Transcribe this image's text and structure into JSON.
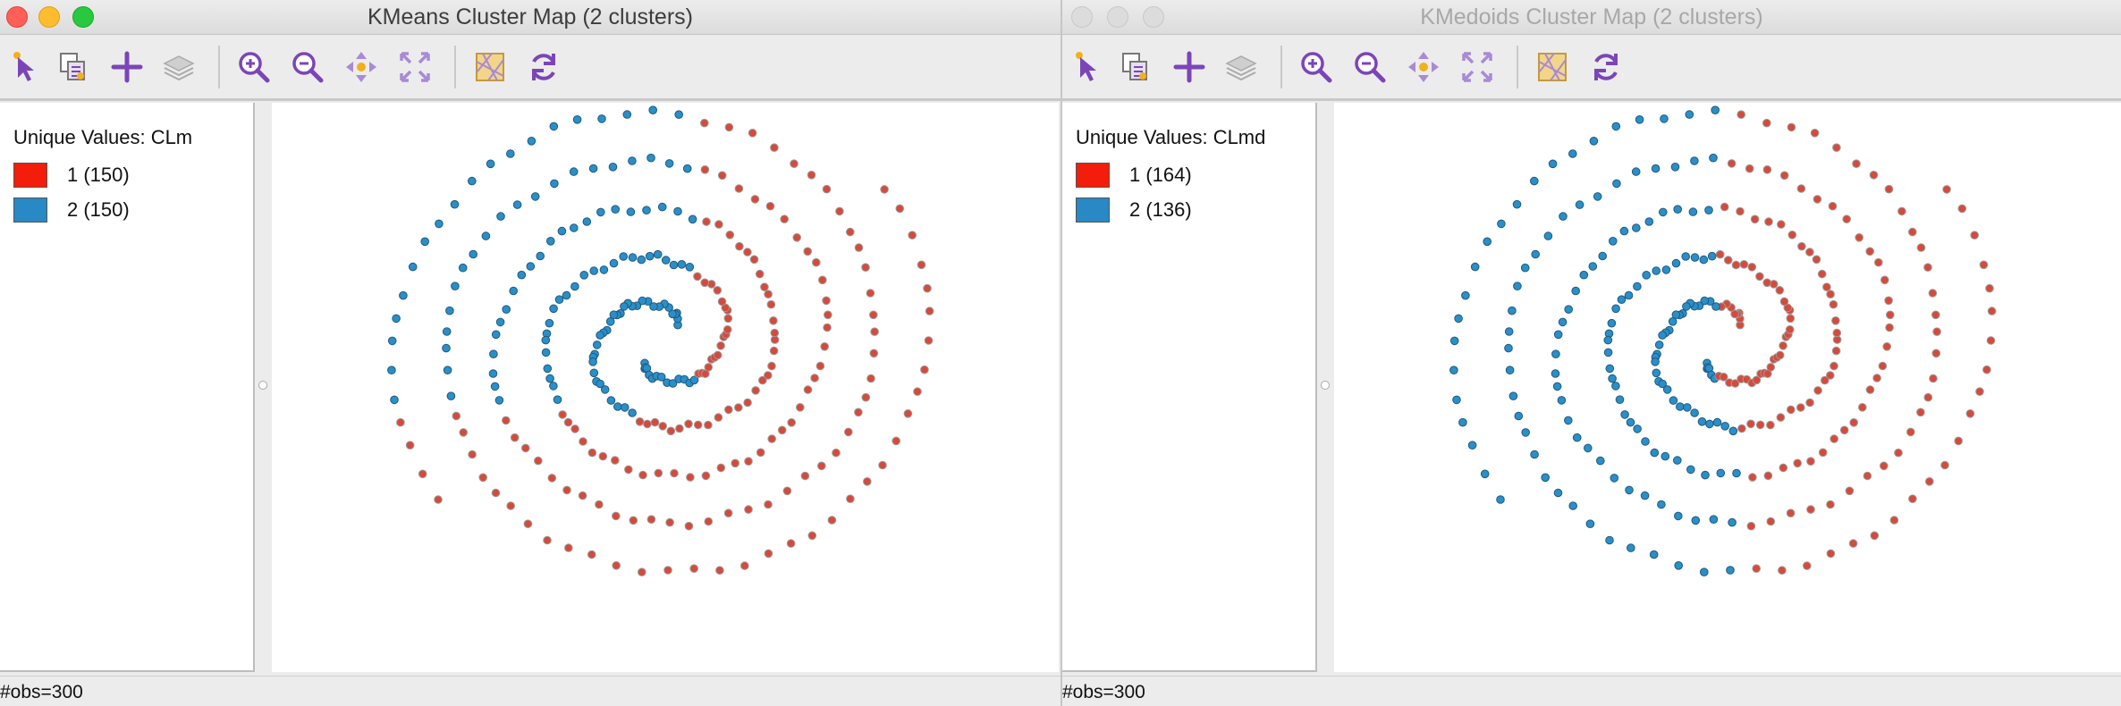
{
  "windows": [
    {
      "id": "kmeans",
      "active": true,
      "title": "KMeans Cluster Map (2 clusters)",
      "legend": {
        "title": "Unique Values: CLm",
        "items": [
          {
            "label": "1 (150)",
            "color": "#f21d0a"
          },
          {
            "label": "2 (150)",
            "color": "#2889c4"
          }
        ]
      },
      "status": "#obs=300"
    },
    {
      "id": "kmedoids",
      "active": false,
      "title": "KMedoids Cluster Map (2 clusters)",
      "legend": {
        "title": "Unique Values: CLmd",
        "items": [
          {
            "label": "1 (164)",
            "color": "#f21d0a"
          },
          {
            "label": "2 (136)",
            "color": "#2889c4"
          }
        ]
      },
      "status": "#obs=300"
    }
  ],
  "toolbar_icons": [
    "select-pointer-icon",
    "selection-tool-icon",
    "add-layer-icon",
    "layers-icon",
    "zoom-in-icon",
    "zoom-out-icon",
    "pan-icon",
    "full-extent-icon",
    "basemap-icon",
    "refresh-icon"
  ],
  "point_colors": {
    "cluster1_fill": "#d64a3b",
    "cluster1_stroke": "#9b9b9b",
    "cluster2_fill": "#2a8fc8",
    "cluster2_stroke": "#205a80"
  },
  "map_data": {
    "n_points": 300,
    "spiral_arms": 2,
    "turns_per_arm": 2.6
  }
}
